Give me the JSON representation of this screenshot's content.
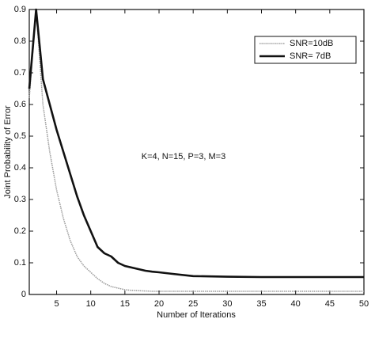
{
  "chart_data": {
    "type": "line",
    "x_label": "Number of Iterations",
    "y_label": "Joint Probability of Error",
    "annotation": "K=4, N=15, P=3, M=3",
    "x": [
      1,
      2,
      3,
      4,
      5,
      6,
      7,
      8,
      9,
      10,
      11,
      12,
      13,
      14,
      15,
      16,
      17,
      18,
      19,
      20,
      22,
      25,
      30,
      35,
      40,
      45,
      50
    ],
    "series": [
      {
        "name": "SNR=10dB",
        "color": "#9a9a9a",
        "values": [
          0.62,
          0.9,
          0.6,
          0.45,
          0.33,
          0.24,
          0.17,
          0.12,
          0.09,
          0.07,
          0.05,
          0.035,
          0.025,
          0.02,
          0.015,
          0.013,
          0.012,
          0.011,
          0.01,
          0.01,
          0.01,
          0.01,
          0.01,
          0.01,
          0.01,
          0.01,
          0.01
        ]
      },
      {
        "name": "SNR= 7dB",
        "color": "#111111",
        "values": [
          0.65,
          0.9,
          0.68,
          0.6,
          0.52,
          0.45,
          0.38,
          0.31,
          0.25,
          0.2,
          0.15,
          0.13,
          0.12,
          0.1,
          0.09,
          0.085,
          0.08,
          0.075,
          0.072,
          0.07,
          0.065,
          0.058,
          0.056,
          0.055,
          0.055,
          0.055,
          0.055
        ]
      }
    ],
    "xlim": [
      1,
      50
    ],
    "xticks": [
      5,
      10,
      15,
      20,
      25,
      30,
      35,
      40,
      45,
      50
    ],
    "ylim": [
      0,
      0.9
    ],
    "yticks": [
      0,
      0.1,
      0.2,
      0.3,
      0.4,
      0.5,
      0.6,
      0.7,
      0.8,
      0.9
    ],
    "legend": "upper right"
  }
}
